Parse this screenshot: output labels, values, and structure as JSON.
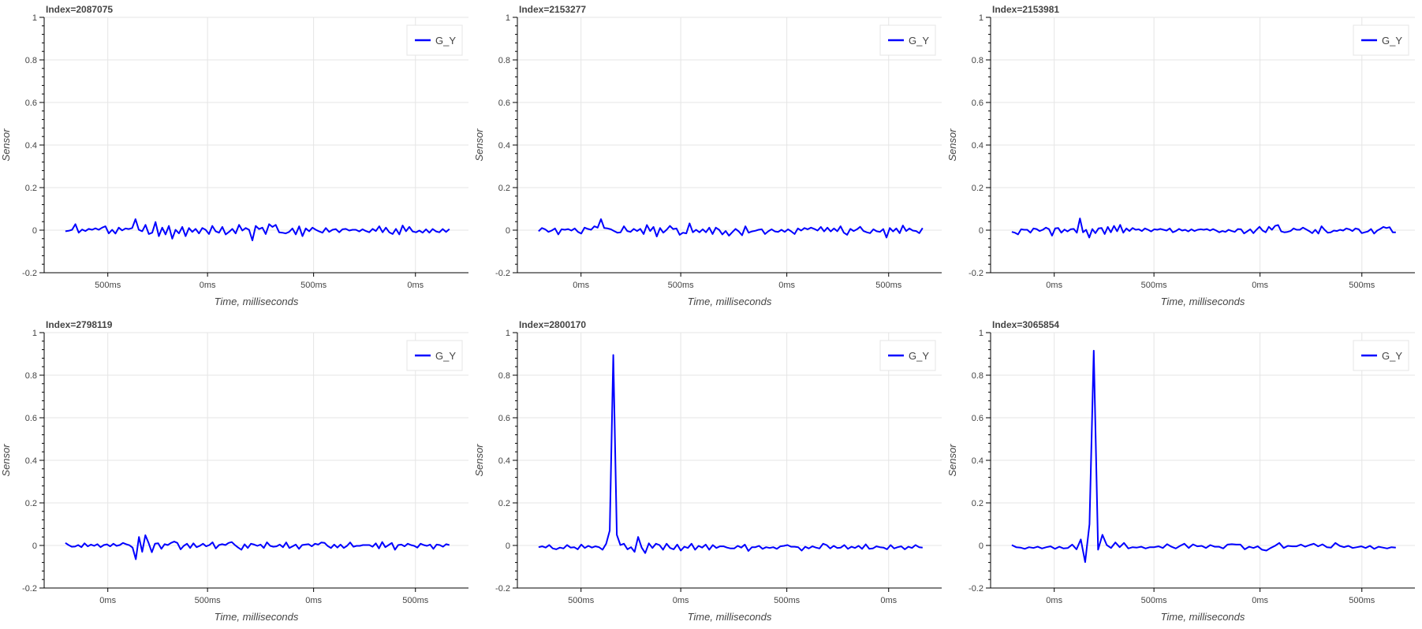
{
  "chart_data": [
    {
      "type": "line",
      "title": "Index=2087075",
      "xlabel": "Time, milliseconds",
      "ylabel": "Sensor",
      "ylim": [
        -0.2,
        1
      ],
      "yticks": [
        "-0.2",
        "0",
        "0.2",
        "0.4",
        "0.6",
        "0.8",
        "1"
      ],
      "xticks": [
        "500ms",
        "0ms",
        "500ms",
        "0ms"
      ],
      "legend": "top-right",
      "grid": true,
      "color": "#0000ff",
      "series": [
        {
          "name": "G_Y",
          "values": [
            -0.005,
            -0.003,
            0.002,
            0.028,
            -0.012,
            0.003,
            -0.004,
            0.006,
            0.002,
            0.009,
            0.002,
            0.012,
            0.018,
            -0.015,
            0.002,
            -0.016,
            0.012,
            -0.001,
            0.008,
            0.005,
            0.01,
            0.052,
            0.002,
            -0.005,
            0.025,
            -0.018,
            -0.012,
            0.038,
            -0.028,
            0.012,
            -0.02,
            0.02,
            -0.04,
            0.002,
            -0.015,
            0.015,
            -0.028,
            0.01,
            -0.008,
            0.006,
            -0.015,
            0.01,
            0.002,
            -0.018,
            0.02,
            -0.005,
            -0.012,
            0.015,
            -0.02,
            -0.008,
            0.006,
            -0.015,
            0.025,
            -0.002,
            0.01,
            0.002,
            -0.048,
            0.02,
            0.005,
            0.012,
            -0.018,
            0.028,
            0.015,
            0.025,
            -0.01,
            -0.012,
            -0.015,
            -0.008,
            0.008,
            -0.02,
            0.018,
            -0.028,
            0.008,
            -0.005,
            0.012,
            0.002,
            -0.006,
            -0.012,
            0.01,
            -0.008,
            0.002,
            0.005,
            -0.01,
            0.004,
            0.006,
            -0.002,
            0.002,
            0.002,
            -0.006,
            0.004,
            -0.004,
            -0.01,
            0.006,
            -0.004,
            0.018,
            -0.01,
            0.012,
            -0.01,
            -0.018,
            0.006,
            -0.02,
            0.022,
            -0.005,
            0.015,
            -0.006,
            -0.01,
            -0.002,
            -0.012,
            0.004,
            -0.012,
            0.005,
            -0.006,
            -0.01,
            0.005,
            -0.008,
            0.005
          ]
        }
      ]
    },
    {
      "type": "line",
      "title": "Index=2153277",
      "xlabel": "Time, milliseconds",
      "ylabel": "Sensor",
      "ylim": [
        -0.2,
        1
      ],
      "yticks": [
        "-0.2",
        "0",
        "0.2",
        "0.4",
        "0.6",
        "0.8",
        "1"
      ],
      "xticks": [
        "0ms",
        "500ms",
        "0ms",
        "500ms"
      ],
      "legend": "top-right",
      "grid": true,
      "color": "#0000ff",
      "series": [
        {
          "name": "G_Y",
          "values": [
            -0.005,
            0.01,
            0.004,
            -0.008,
            -0.002,
            0.008,
            -0.02,
            0.004,
            0.002,
            0.005,
            -0.002,
            0.008,
            -0.008,
            -0.016,
            0.012,
            0.006,
            0.002,
            0.018,
            0.012,
            0.052,
            0.01,
            0.008,
            0.004,
            -0.004,
            -0.012,
            -0.01,
            0.018,
            -0.004,
            -0.008,
            0.006,
            -0.004,
            0.006,
            -0.018,
            0.024,
            -0.004,
            0.015,
            -0.03,
            0.01,
            -0.012,
            0.002,
            0.02,
            0.005,
            0.008,
            -0.022,
            -0.012,
            -0.015,
            0.032,
            -0.01,
            0.002,
            -0.01,
            0.004,
            -0.01,
            0.012,
            -0.018,
            0.012,
            0.002,
            -0.02,
            -0.004,
            -0.026,
            -0.01,
            0.006,
            -0.006,
            -0.024,
            0.018,
            -0.012,
            -0.006,
            -0.003,
            0.002,
            0.004,
            -0.018,
            -0.005,
            0.004,
            -0.006,
            -0.008,
            0.002,
            -0.008,
            0.004,
            -0.006,
            -0.018,
            0.008,
            -0.002,
            0.01,
            0.004,
            0.012,
            0.006,
            -0.002,
            0.015,
            -0.006,
            0.012,
            -0.006,
            0.008,
            -0.005,
            0.018,
            -0.012,
            -0.022,
            0.006,
            -0.004,
            0.004,
            0.016,
            -0.004,
            -0.01,
            -0.014,
            0.004,
            -0.005,
            -0.008,
            0.005,
            -0.035,
            0.01,
            -0.006,
            0.008,
            -0.014,
            0.022,
            -0.004,
            0.008,
            -0.002,
            -0.004,
            -0.014,
            0.01
          ]
        }
      ]
    },
    {
      "type": "line",
      "title": "Index=2153981",
      "xlabel": "Time, milliseconds",
      "ylabel": "Sensor",
      "ylim": [
        -0.2,
        1
      ],
      "yticks": [
        "-0.2",
        "0",
        "0.2",
        "0.4",
        "0.6",
        "0.8",
        "1"
      ],
      "xticks": [
        "0ms",
        "500ms",
        "0ms",
        "500ms"
      ],
      "legend": "top-right",
      "grid": true,
      "color": "#0000ff",
      "series": [
        {
          "name": "G_Y",
          "values": [
            -0.008,
            -0.012,
            -0.02,
            0.004,
            0.002,
            0.002,
            -0.012,
            0.008,
            0.005,
            -0.004,
            0.002,
            0.012,
            0.005,
            -0.026,
            0.008,
            0.01,
            -0.012,
            0.003,
            -0.006,
            0.004,
            0.006,
            -0.012,
            0.055,
            -0.01,
            0.002,
            -0.035,
            0.005,
            -0.014,
            0.008,
            0.01,
            -0.018,
            0.015,
            -0.01,
            0.02,
            -0.005,
            0.025,
            -0.012,
            0.008,
            -0.004,
            0.01,
            0.002,
            0.004,
            -0.004,
            0.008,
            0.002,
            -0.006,
            0.004,
            0.002,
            0.006,
            0.002,
            -0.002,
            0.008,
            -0.01,
            -0.004,
            0.006,
            -0.002,
            0.002,
            -0.006,
            0.004,
            -0.004,
            0.002,
            0.004,
            0.002,
            0.005,
            -0.002,
            0.005,
            -0.002,
            -0.01,
            -0.004,
            -0.008,
            0.002,
            -0.004,
            -0.008,
            0.005,
            0.004,
            -0.015,
            -0.006,
            0.004,
            -0.014,
            0.002,
            0.016,
            -0.002,
            -0.01,
            0.016,
            0.002,
            0.02,
            0.024,
            -0.006,
            -0.01,
            -0.008,
            -0.004,
            0.008,
            0.002,
            0.002,
            0.012,
            0.004,
            -0.004,
            -0.014,
            0.002,
            -0.016,
            0.018,
            0.002,
            -0.012,
            -0.01,
            -0.002,
            -0.004,
            0.002,
            -0.002,
            0.008,
            0.004,
            -0.004,
            0.008,
            0.004,
            -0.014,
            -0.01,
            -0.006,
            0.005,
            -0.016,
            -0.002,
            0.006,
            0.015,
            0.01,
            0.014,
            -0.01,
            -0.01
          ]
        }
      ]
    },
    {
      "type": "line",
      "title": "Index=2798119",
      "xlabel": "Time, milliseconds",
      "ylabel": "Sensor",
      "ylim": [
        -0.2,
        1
      ],
      "yticks": [
        "-0.2",
        "0",
        "0.2",
        "0.4",
        "0.6",
        "0.8",
        "1"
      ],
      "xticks": [
        "0ms",
        "500ms",
        "0ms",
        "500ms"
      ],
      "legend": "top-right",
      "grid": true,
      "color": "#0000ff",
      "series": [
        {
          "name": "G_Y",
          "values": [
            0.012,
            0.002,
            -0.006,
            -0.005,
            0.002,
            -0.008,
            0.01,
            -0.004,
            0.004,
            -0.002,
            0.006,
            -0.008,
            0.002,
            0.005,
            -0.004,
            0.008,
            -0.002,
            0.002,
            0.012,
            0.006,
            0.001,
            -0.01,
            -0.065,
            0.04,
            -0.03,
            0.048,
            0.012,
            -0.032,
            0.008,
            0.01,
            -0.016,
            0.006,
            0.002,
            0.012,
            0.018,
            0.012,
            -0.018,
            -0.002,
            0.008,
            -0.012,
            0.01,
            -0.008,
            -0.002,
            0.008,
            -0.004,
            0.002,
            0.015,
            -0.014,
            0.002,
            0.006,
            0.002,
            0.012,
            0.016,
            0.002,
            -0.01,
            -0.02,
            0.005,
            -0.012,
            0.008,
            0.004,
            -0.002,
            0.004,
            -0.012,
            0.015,
            -0.002,
            -0.006,
            -0.004,
            0.004,
            -0.008,
            0.014,
            -0.012,
            -0.004,
            0.004,
            -0.016,
            0.002,
            0.004,
            0.006,
            -0.004,
            0.008,
            0.004,
            0.014,
            0.012,
            -0.003,
            -0.012,
            0.004,
            -0.01,
            0.004,
            -0.012,
            -0.002,
            0.014,
            -0.006,
            -0.002,
            -0.002,
            0.002,
            0.002,
            0.002,
            -0.006,
            0.01,
            -0.014,
            0.016,
            -0.008,
            0.002,
            0.012,
            -0.02,
            0.002,
            0.004,
            -0.004,
            0.008,
            0.002,
            -0.002,
            -0.01,
            0.008,
            0.002,
            -0.002,
            0.004,
            -0.016,
            0.004,
            0.002,
            -0.006,
            0.006,
            0.002
          ]
        }
      ]
    },
    {
      "type": "line",
      "title": "Index=2800170",
      "xlabel": "Time, milliseconds",
      "ylabel": "Sensor",
      "ylim": [
        -0.2,
        1
      ],
      "yticks": [
        "-0.2",
        "0",
        "0.2",
        "0.4",
        "0.6",
        "0.8",
        "1"
      ],
      "xticks": [
        "500ms",
        "0ms",
        "500ms",
        "0ms"
      ],
      "legend": "top-right",
      "grid": true,
      "color": "#0000ff",
      "series": [
        {
          "name": "G_Y",
          "values": [
            -0.008,
            -0.004,
            -0.01,
            0.002,
            -0.014,
            -0.018,
            -0.01,
            -0.014,
            0.002,
            -0.01,
            -0.008,
            -0.018,
            0.004,
            -0.012,
            -0.002,
            -0.01,
            -0.004,
            -0.008,
            -0.02,
            0.008,
            0.07,
            0.895,
            0.05,
            0.002,
            0.008,
            -0.018,
            -0.008,
            -0.03,
            0.04,
            -0.01,
            -0.036,
            0.01,
            -0.012,
            0.008,
            0.002,
            -0.02,
            0.008,
            -0.012,
            -0.018,
            0.004,
            -0.024,
            -0.006,
            -0.012,
            0.008,
            -0.02,
            -0.002,
            -0.01,
            0.004,
            -0.02,
            0.002,
            -0.012,
            -0.004,
            -0.004,
            -0.01,
            -0.014,
            -0.014,
            -0.002,
            -0.01,
            0.004,
            -0.026,
            -0.008,
            -0.008,
            -0.002,
            -0.016,
            -0.008,
            -0.012,
            -0.008,
            -0.016,
            -0.004,
            -0.002,
            0.002,
            -0.006,
            -0.006,
            -0.008,
            -0.024,
            -0.006,
            -0.014,
            -0.004,
            -0.01,
            -0.014,
            0.008,
            0.002,
            -0.014,
            -0.002,
            -0.012,
            -0.01,
            0.002,
            -0.016,
            -0.006,
            -0.012,
            -0.002,
            -0.016,
            0.005,
            -0.016,
            -0.014,
            -0.004,
            -0.008,
            -0.01,
            -0.018,
            0.002,
            -0.014,
            -0.008,
            -0.004,
            -0.018,
            -0.006,
            -0.012,
            0.002,
            -0.008,
            -0.01
          ]
        }
      ]
    },
    {
      "type": "line",
      "title": "Index=3065854",
      "xlabel": "Time, milliseconds",
      "ylabel": "Sensor",
      "ylim": [
        -0.2,
        1
      ],
      "yticks": [
        "-0.2",
        "0",
        "0.2",
        "0.4",
        "0.6",
        "0.8",
        "1"
      ],
      "xticks": [
        "0ms",
        "500ms",
        "0ms",
        "500ms"
      ],
      "legend": "top-right",
      "grid": true,
      "color": "#0000ff",
      "series": [
        {
          "name": "G_Y",
          "values": [
            0.002,
            -0.008,
            -0.01,
            -0.016,
            -0.008,
            -0.012,
            -0.006,
            -0.014,
            -0.008,
            -0.004,
            -0.016,
            -0.006,
            -0.014,
            -0.012,
            0.004,
            -0.018,
            0.028,
            -0.078,
            0.1,
            0.915,
            -0.02,
            0.05,
            0.002,
            -0.012,
            0.014,
            -0.008,
            0.012,
            -0.014,
            -0.008,
            -0.01,
            -0.006,
            -0.014,
            -0.008,
            -0.008,
            -0.004,
            -0.012,
            0.006,
            -0.006,
            -0.014,
            -0.002,
            0.008,
            -0.012,
            0.005,
            -0.004,
            -0.002,
            -0.012,
            0.002,
            -0.006,
            -0.006,
            -0.014,
            0.004,
            0.006,
            0.004,
            0.004,
            -0.018,
            -0.006,
            -0.012,
            -0.004,
            -0.02,
            -0.024,
            -0.012,
            -0.002,
            0.012,
            -0.012,
            -0.002,
            -0.004,
            -0.004,
            0.004,
            -0.006,
            0.002,
            0.008,
            -0.004,
            0.005,
            -0.008,
            -0.01,
            0.012,
            -0.002,
            -0.008,
            -0.002,
            -0.012,
            -0.008,
            -0.004,
            -0.012,
            -0.002,
            -0.016,
            -0.006,
            -0.01,
            -0.014,
            -0.008,
            -0.01
          ]
        }
      ]
    }
  ]
}
